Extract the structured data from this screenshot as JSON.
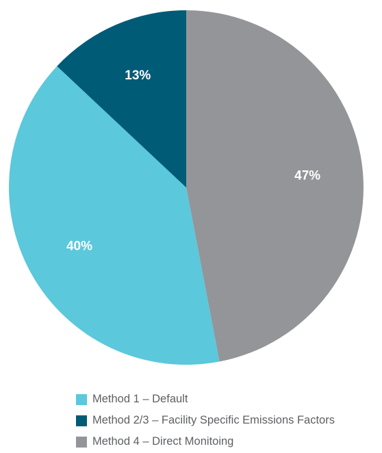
{
  "chart_data": {
    "type": "pie",
    "title": "",
    "start": "top",
    "direction": "clockwise",
    "slices": [
      {
        "label": "Method 4 – Direct Monitoing",
        "value": 47,
        "display": "47%",
        "color": "#949598"
      },
      {
        "label": "Method 1 – Default",
        "value": 40,
        "display": "40%",
        "color": "#5bc8dc"
      },
      {
        "label": "Method 2/3 – Facility Specific Emissions Factors",
        "value": 13,
        "display": "13%",
        "color": "#005b77"
      }
    ],
    "legend": {
      "placement": "bottom",
      "items": [
        {
          "label": "Method 1 – Default",
          "color": "#5bc8dc"
        },
        {
          "label": "Method 2/3 – Facility Specific Emissions Factors",
          "color": "#005b77"
        },
        {
          "label": "Method 4 – Direct Monitoing",
          "color": "#949598"
        }
      ]
    }
  }
}
